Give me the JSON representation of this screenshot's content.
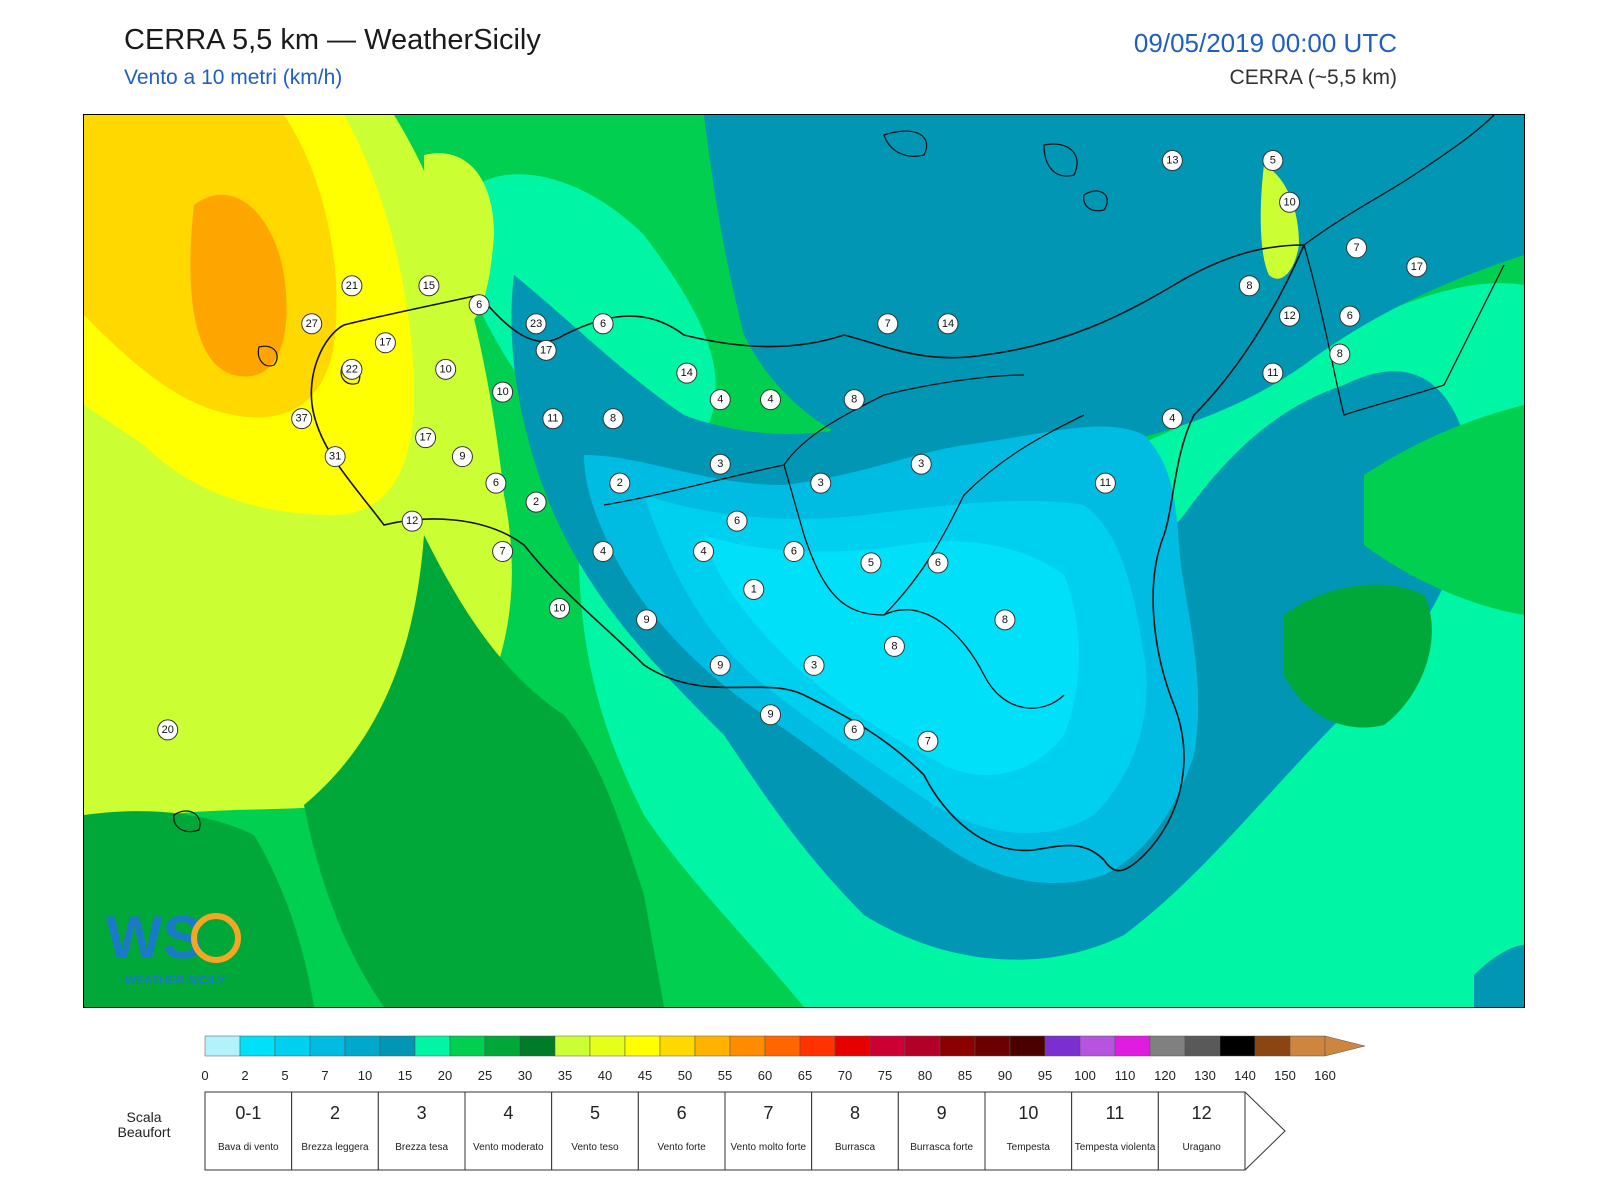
{
  "header": {
    "title": "CERRA 5,5 km — WeatherSicily",
    "subtitle": "Vento a 10 metri (km/h)",
    "datetime": "09/05/2019 00:00 UTC",
    "model": "CERRA (~5,5 km)"
  },
  "logo": {
    "text": "WEATHER SICILY",
    "mark": "WS"
  },
  "stations": [
    {
      "value": 13,
      "lon": 14.95,
      "lat": 38.78
    },
    {
      "value": 5,
      "lon": 15.25,
      "lat": 38.78
    },
    {
      "value": 10,
      "lon": 15.3,
      "lat": 38.67
    },
    {
      "value": 7,
      "lon": 15.5,
      "lat": 38.55
    },
    {
      "value": 17,
      "lon": 15.68,
      "lat": 38.5
    },
    {
      "value": 21,
      "lon": 12.5,
      "lat": 38.45
    },
    {
      "value": 15,
      "lon": 12.73,
      "lat": 38.45
    },
    {
      "value": 6,
      "lon": 12.88,
      "lat": 38.4
    },
    {
      "value": 8,
      "lon": 15.18,
      "lat": 38.45
    },
    {
      "value": 12,
      "lon": 15.3,
      "lat": 38.37
    },
    {
      "value": 6,
      "lon": 15.48,
      "lat": 38.37
    },
    {
      "value": 27,
      "lon": 12.38,
      "lat": 38.35
    },
    {
      "value": 23,
      "lon": 13.05,
      "lat": 38.35
    },
    {
      "value": 6,
      "lon": 13.25,
      "lat": 38.35
    },
    {
      "value": 7,
      "lon": 14.1,
      "lat": 38.35
    },
    {
      "value": 14,
      "lon": 14.28,
      "lat": 38.35
    },
    {
      "value": 17,
      "lon": 12.6,
      "lat": 38.3
    },
    {
      "value": 17,
      "lon": 13.08,
      "lat": 38.28
    },
    {
      "value": 8,
      "lon": 15.45,
      "lat": 38.27
    },
    {
      "value": 22,
      "lon": 12.5,
      "lat": 38.23
    },
    {
      "value": 10,
      "lon": 12.78,
      "lat": 38.23
    },
    {
      "value": 14,
      "lon": 13.5,
      "lat": 38.22
    },
    {
      "value": 11,
      "lon": 15.25,
      "lat": 38.22
    },
    {
      "value": 10,
      "lon": 12.95,
      "lat": 38.17
    },
    {
      "value": 4,
      "lon": 13.6,
      "lat": 38.15
    },
    {
      "value": 4,
      "lon": 13.75,
      "lat": 38.15
    },
    {
      "value": 8,
      "lon": 14.0,
      "lat": 38.15
    },
    {
      "value": 37,
      "lon": 12.35,
      "lat": 38.1
    },
    {
      "value": 11,
      "lon": 13.1,
      "lat": 38.1
    },
    {
      "value": 8,
      "lon": 13.28,
      "lat": 38.1
    },
    {
      "value": 4,
      "lon": 14.95,
      "lat": 38.1
    },
    {
      "value": 17,
      "lon": 12.72,
      "lat": 38.05
    },
    {
      "value": 31,
      "lon": 12.45,
      "lat": 38.0
    },
    {
      "value": 9,
      "lon": 12.83,
      "lat": 38.0
    },
    {
      "value": 3,
      "lon": 13.6,
      "lat": 37.98
    },
    {
      "value": 3,
      "lon": 14.2,
      "lat": 37.98
    },
    {
      "value": 6,
      "lon": 12.93,
      "lat": 37.93
    },
    {
      "value": 2,
      "lon": 13.3,
      "lat": 37.93
    },
    {
      "value": 3,
      "lon": 13.9,
      "lat": 37.93
    },
    {
      "value": 11,
      "lon": 14.75,
      "lat": 37.93
    },
    {
      "value": 2,
      "lon": 13.05,
      "lat": 37.88
    },
    {
      "value": 12,
      "lon": 12.68,
      "lat": 37.83
    },
    {
      "value": 6,
      "lon": 13.65,
      "lat": 37.83
    },
    {
      "value": 7,
      "lon": 12.95,
      "lat": 37.75
    },
    {
      "value": 4,
      "lon": 13.25,
      "lat": 37.75
    },
    {
      "value": 4,
      "lon": 13.55,
      "lat": 37.75
    },
    {
      "value": 6,
      "lon": 13.82,
      "lat": 37.75
    },
    {
      "value": 5,
      "lon": 14.05,
      "lat": 37.72
    },
    {
      "value": 6,
      "lon": 14.25,
      "lat": 37.72
    },
    {
      "value": 1,
      "lon": 13.7,
      "lat": 37.65
    },
    {
      "value": 10,
      "lon": 13.12,
      "lat": 37.6
    },
    {
      "value": 9,
      "lon": 13.38,
      "lat": 37.57
    },
    {
      "value": 8,
      "lon": 14.45,
      "lat": 37.57
    },
    {
      "value": 8,
      "lon": 14.12,
      "lat": 37.5
    },
    {
      "value": 9,
      "lon": 13.6,
      "lat": 37.45
    },
    {
      "value": 3,
      "lon": 13.88,
      "lat": 37.45
    },
    {
      "value": 9,
      "lon": 13.75,
      "lat": 37.32
    },
    {
      "value": 6,
      "lon": 14.0,
      "lat": 37.28
    },
    {
      "value": 7,
      "lon": 14.22,
      "lat": 37.25
    },
    {
      "value": 20,
      "lon": 11.95,
      "lat": 37.28
    }
  ],
  "colorbar": {
    "ticks": [
      "0",
      "2",
      "5",
      "7",
      "10",
      "15",
      "20",
      "25",
      "30",
      "35",
      "40",
      "45",
      "50",
      "55",
      "60",
      "65",
      "70",
      "75",
      "80",
      "85",
      "90",
      "95",
      "100",
      "110",
      "120",
      "130",
      "140",
      "150",
      "160"
    ],
    "colors": [
      "#b3f2fa",
      "#00e0f8",
      "#00d0f0",
      "#00bce2",
      "#00a8cc",
      "#0096b4",
      "#00f5a4",
      "#00cf50",
      "#00a83a",
      "#007b27",
      "#ccff33",
      "#e6ff1a",
      "#ffff00",
      "#ffd800",
      "#ffb300",
      "#ff8c00",
      "#ff6600",
      "#ff3300",
      "#e60000",
      "#cc0033",
      "#b30026",
      "#8b0000",
      "#6a0000",
      "#4b0000",
      "#7b2fd0",
      "#b654e0",
      "#e01ce0",
      "#808080",
      "#595959",
      "#000000",
      "#8b4513",
      "#cd853f"
    ]
  },
  "beaufort": {
    "caption": "Scala Beaufort",
    "entries": [
      {
        "num": "0-1",
        "name": "Bava di vento"
      },
      {
        "num": "2",
        "name": "Brezza leggera"
      },
      {
        "num": "3",
        "name": "Brezza tesa"
      },
      {
        "num": "4",
        "name": "Vento moderato"
      },
      {
        "num": "5",
        "name": "Vento teso"
      },
      {
        "num": "6",
        "name": "Vento forte"
      },
      {
        "num": "7",
        "name": "Vento molto forte"
      },
      {
        "num": "8",
        "name": "Burrasca"
      },
      {
        "num": "9",
        "name": "Burrasca forte"
      },
      {
        "num": "10",
        "name": "Tempesta"
      },
      {
        "num": "11",
        "name": "Tempesta violenta"
      },
      {
        "num": "12",
        "name": "Uragano"
      }
    ]
  }
}
